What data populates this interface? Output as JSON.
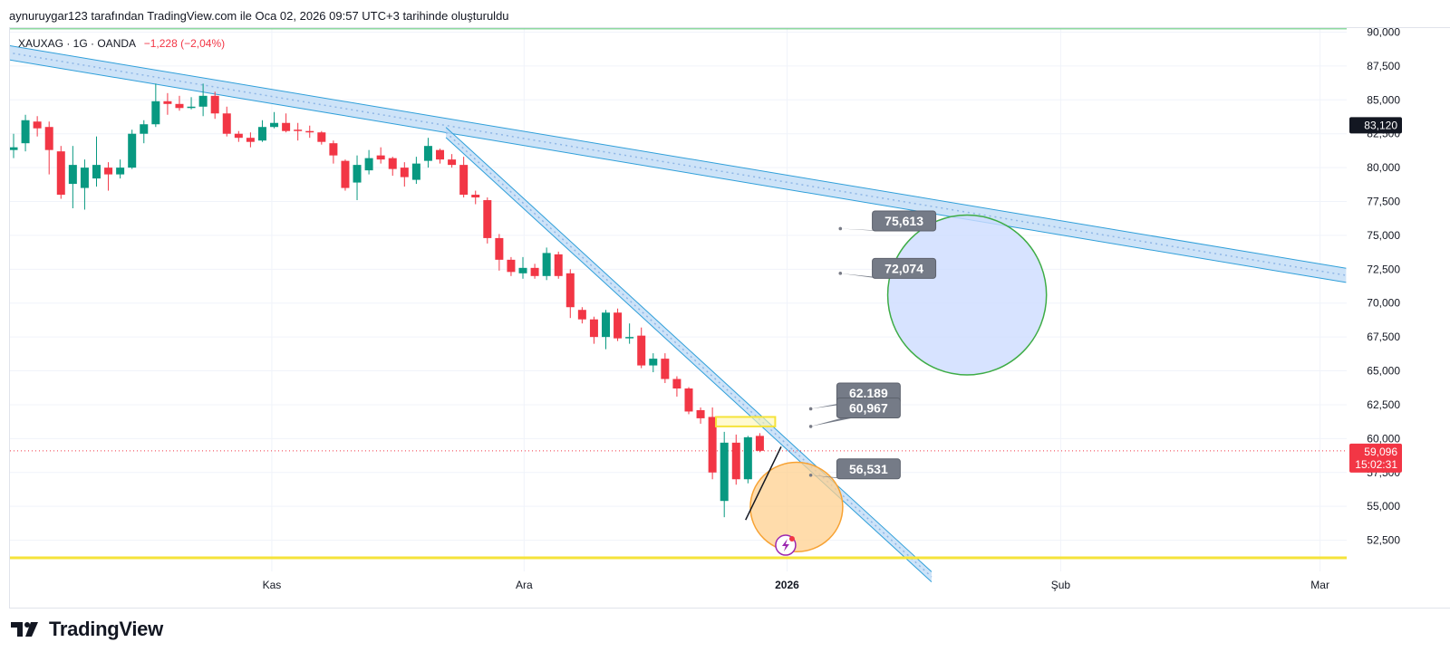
{
  "header": {
    "caption": "aynuruygar123 tarafından TradingView.com ile Oca 02, 2026 09:57 UTC+3 tarihinde oluşturuldu"
  },
  "symbol": {
    "title": "XAUXAG · 1G · OANDA",
    "change": "−1,228 (−2,04%)"
  },
  "brand": {
    "name": "TradingView"
  },
  "colors": {
    "up": "#089981",
    "down": "#f23645",
    "channel": "#2f9fd9",
    "channel_fill": "#bcdaf5",
    "note_bg": "#757b87",
    "circle_blue_fill": "#cddcff",
    "circle_green": "#3dac45",
    "circle_orange_fill": "#ffd08f",
    "circle_orange": "#f7a233",
    "horizontal_yellow": "#f5e33a",
    "horizontal_green": "#8ed9a0"
  },
  "chart_data": {
    "type": "candlestick",
    "y_axis": {
      "range": [
        50200,
        90300
      ],
      "ticks": [
        52500,
        55000,
        57500,
        60000,
        62500,
        65000,
        67500,
        70000,
        72500,
        75000,
        77500,
        80000,
        82500,
        85000,
        87500,
        90000
      ],
      "tick_labels": [
        "52,500",
        "55,000",
        "57,500",
        "60,000",
        "62,500",
        "65,000",
        "67,500",
        "70,000",
        "72,500",
        "75,000",
        "77,500",
        "80,000",
        "82,500",
        "85,000",
        "87,500",
        "90,000"
      ]
    },
    "x_axis": {
      "labels": [
        {
          "label": "Kas",
          "bar": 21.8
        },
        {
          "label": "Ara",
          "bar": 43.1
        },
        {
          "label": "2026",
          "bar": 65.3,
          "bold": true
        },
        {
          "label": "Şub",
          "bar": 88.4
        },
        {
          "label": "Mar",
          "bar": 110.3
        }
      ],
      "bars_total": 112.5
    },
    "candles": [
      {
        "o": 81300,
        "h": 82500,
        "l": 80700,
        "c": 81500
      },
      {
        "o": 81800,
        "h": 83900,
        "l": 81200,
        "c": 83500
      },
      {
        "o": 83400,
        "h": 83800,
        "l": 82300,
        "c": 82900
      },
      {
        "o": 83000,
        "h": 83400,
        "l": 79500,
        "c": 81300
      },
      {
        "o": 81200,
        "h": 81600,
        "l": 77700,
        "c": 78000
      },
      {
        "o": 78800,
        "h": 81600,
        "l": 77000,
        "c": 80200
      },
      {
        "o": 78500,
        "h": 80600,
        "l": 76900,
        "c": 80000
      },
      {
        "o": 79200,
        "h": 82300,
        "l": 78600,
        "c": 80200
      },
      {
        "o": 80000,
        "h": 80400,
        "l": 78300,
        "c": 79500
      },
      {
        "o": 79500,
        "h": 80600,
        "l": 79200,
        "c": 80000
      },
      {
        "o": 80000,
        "h": 82800,
        "l": 79900,
        "c": 82500
      },
      {
        "o": 82500,
        "h": 83500,
        "l": 81800,
        "c": 83200
      },
      {
        "o": 83200,
        "h": 86200,
        "l": 83000,
        "c": 84900
      },
      {
        "o": 84900,
        "h": 85500,
        "l": 83900,
        "c": 84700
      },
      {
        "o": 84700,
        "h": 85300,
        "l": 84200,
        "c": 84400
      },
      {
        "o": 84400,
        "h": 85200,
        "l": 84300,
        "c": 84500
      },
      {
        "o": 84500,
        "h": 86200,
        "l": 83800,
        "c": 85300
      },
      {
        "o": 85300,
        "h": 85600,
        "l": 83600,
        "c": 84000
      },
      {
        "o": 84000,
        "h": 84500,
        "l": 82300,
        "c": 82500
      },
      {
        "o": 82500,
        "h": 82700,
        "l": 81900,
        "c": 82200
      },
      {
        "o": 82200,
        "h": 82600,
        "l": 81500,
        "c": 81900
      },
      {
        "o": 82000,
        "h": 83500,
        "l": 81900,
        "c": 83000
      },
      {
        "o": 83000,
        "h": 84100,
        "l": 82900,
        "c": 83300
      },
      {
        "o": 83300,
        "h": 84000,
        "l": 82600,
        "c": 82700
      },
      {
        "o": 82800,
        "h": 83300,
        "l": 82000,
        "c": 82700
      },
      {
        "o": 82700,
        "h": 83100,
        "l": 82200,
        "c": 82600
      },
      {
        "o": 82600,
        "h": 82700,
        "l": 81700,
        "c": 81900
      },
      {
        "o": 81800,
        "h": 82000,
        "l": 80300,
        "c": 80900
      },
      {
        "o": 80500,
        "h": 80600,
        "l": 78300,
        "c": 78500
      },
      {
        "o": 78900,
        "h": 80900,
        "l": 77600,
        "c": 80200
      },
      {
        "o": 79800,
        "h": 81300,
        "l": 79500,
        "c": 80700
      },
      {
        "o": 80900,
        "h": 81500,
        "l": 80300,
        "c": 80600
      },
      {
        "o": 80700,
        "h": 80800,
        "l": 79400,
        "c": 79900
      },
      {
        "o": 80000,
        "h": 80400,
        "l": 78600,
        "c": 79300
      },
      {
        "o": 79100,
        "h": 80800,
        "l": 78800,
        "c": 80300
      },
      {
        "o": 80500,
        "h": 82200,
        "l": 80000,
        "c": 81600
      },
      {
        "o": 81300,
        "h": 81400,
        "l": 80300,
        "c": 80600
      },
      {
        "o": 80600,
        "h": 81000,
        "l": 80000,
        "c": 80200
      },
      {
        "o": 80200,
        "h": 80800,
        "l": 77800,
        "c": 78000
      },
      {
        "o": 78000,
        "h": 78300,
        "l": 77300,
        "c": 77800
      },
      {
        "o": 77600,
        "h": 77800,
        "l": 74400,
        "c": 74800
      },
      {
        "o": 74800,
        "h": 75100,
        "l": 72400,
        "c": 73200
      },
      {
        "o": 73200,
        "h": 73400,
        "l": 72000,
        "c": 72300
      },
      {
        "o": 72200,
        "h": 73400,
        "l": 71800,
        "c": 72600
      },
      {
        "o": 72600,
        "h": 72900,
        "l": 71800,
        "c": 72000
      },
      {
        "o": 72000,
        "h": 74100,
        "l": 71700,
        "c": 73700
      },
      {
        "o": 73600,
        "h": 73800,
        "l": 71800,
        "c": 72000
      },
      {
        "o": 72200,
        "h": 72500,
        "l": 68900,
        "c": 69700
      },
      {
        "o": 69500,
        "h": 69700,
        "l": 68500,
        "c": 68800
      },
      {
        "o": 68800,
        "h": 69000,
        "l": 67000,
        "c": 67500
      },
      {
        "o": 67500,
        "h": 69500,
        "l": 66600,
        "c": 69300
      },
      {
        "o": 69300,
        "h": 69600,
        "l": 67200,
        "c": 67400
      },
      {
        "o": 67400,
        "h": 68500,
        "l": 67000,
        "c": 67500
      },
      {
        "o": 67600,
        "h": 68200,
        "l": 65200,
        "c": 65400
      },
      {
        "o": 65400,
        "h": 66300,
        "l": 64900,
        "c": 65900
      },
      {
        "o": 65900,
        "h": 66300,
        "l": 64100,
        "c": 64400
      },
      {
        "o": 64400,
        "h": 64600,
        "l": 63100,
        "c": 63700
      },
      {
        "o": 63700,
        "h": 63800,
        "l": 61800,
        "c": 62000
      },
      {
        "o": 62100,
        "h": 62300,
        "l": 61100,
        "c": 61500
      },
      {
        "o": 61600,
        "h": 62300,
        "l": 57000,
        "c": 57500
      },
      {
        "o": 55400,
        "h": 60500,
        "l": 54200,
        "c": 59700
      },
      {
        "o": 59700,
        "h": 60300,
        "l": 56600,
        "c": 57000
      },
      {
        "o": 57000,
        "h": 60200,
        "l": 56700,
        "c": 60100
      },
      {
        "o": 60200,
        "h": 60400,
        "l": 59000,
        "c": 59100
      }
    ],
    "trendlines": [
      {
        "name": "long-channel",
        "from": {
          "bar": -0.5,
          "price": 88500
        },
        "to": {
          "bar": 112.5,
          "price": 72050
        },
        "width": 1050
      },
      {
        "name": "steep-channel",
        "from": {
          "bar": 36.5,
          "price": 82600
        },
        "to": {
          "bar": 77.5,
          "price": 49800
        },
        "width": 750
      }
    ],
    "notes": [
      {
        "text": "75,613",
        "bar": 72.5,
        "price": 76800,
        "anchor": {
          "bar": 69.8,
          "price": 75500
        }
      },
      {
        "text": "72,074",
        "bar": 72.5,
        "price": 73300,
        "anchor": {
          "bar": 69.8,
          "price": 72200
        }
      },
      {
        "text": "62.189",
        "bar": 69.5,
        "price": 64100,
        "anchor": {
          "bar": 67.3,
          "price": 62200
        }
      },
      {
        "text": "60,967",
        "bar": 69.5,
        "price": 63000,
        "anchor": {
          "bar": 67.3,
          "price": 60900
        }
      },
      {
        "text": "56,531",
        "bar": 69.5,
        "price": 58500,
        "anchor": {
          "bar": 67.3,
          "price": 57300
        }
      }
    ],
    "circles": [
      {
        "name": "target-circle",
        "bar": 80.5,
        "price": 70600,
        "r_bars": 6.7,
        "r_price": 5900
      },
      {
        "name": "support-circle",
        "bar": 66.1,
        "price": 54950,
        "r_bars": 3.9,
        "r_price": 3300
      }
    ],
    "highlight_rect": {
      "bar1": 59.3,
      "bar2": 64.3,
      "price1": 60900,
      "price2": 61600
    },
    "support_line": 51200,
    "top_line": 90250,
    "dotted_line": 59096,
    "black_line": {
      "from": {
        "bar": 61.8,
        "price": 54000
      },
      "to": {
        "bar": 64.8,
        "price": 59400
      }
    },
    "last_price": {
      "value": "59,096",
      "countdown": "15:02:31"
    },
    "marker_price": {
      "value": "83,120",
      "price": 83120
    }
  }
}
